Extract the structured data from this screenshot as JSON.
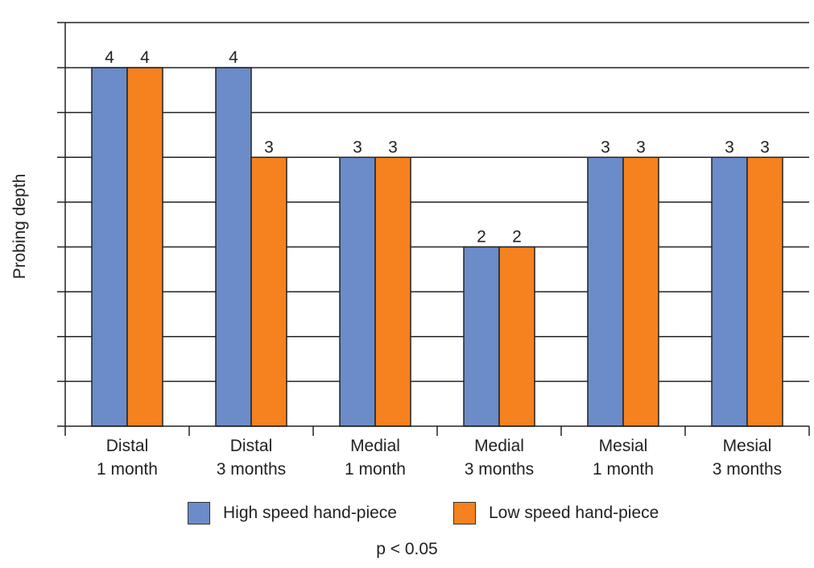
{
  "chart_data": {
    "type": "bar",
    "ylabel": "Probing depth",
    "xlabel": "",
    "ylim": [
      0,
      4
    ],
    "grid": true,
    "legend_placement": "bottom",
    "categories": [
      [
        "Distal",
        "1 month"
      ],
      [
        "Distal",
        "3 months"
      ],
      [
        "Medial",
        "1 month"
      ],
      [
        "Medial",
        "3 months"
      ],
      [
        "Mesial",
        "1 month"
      ],
      [
        "Mesial",
        "3 months"
      ]
    ],
    "series": [
      {
        "name": "High speed hand-piece",
        "values": [
          4,
          4,
          3,
          2,
          3,
          3
        ],
        "labels": [
          "4",
          "4",
          "3",
          "2",
          "3",
          "3"
        ],
        "color": "#6b8cc9"
      },
      {
        "name": "Low speed hand-piece",
        "values": [
          4,
          3,
          3,
          2,
          3,
          3
        ],
        "labels": [
          "4",
          "3",
          "3",
          "2",
          "3",
          "3"
        ],
        "color": "#f5811f"
      }
    ],
    "note": "p < 0.05"
  }
}
